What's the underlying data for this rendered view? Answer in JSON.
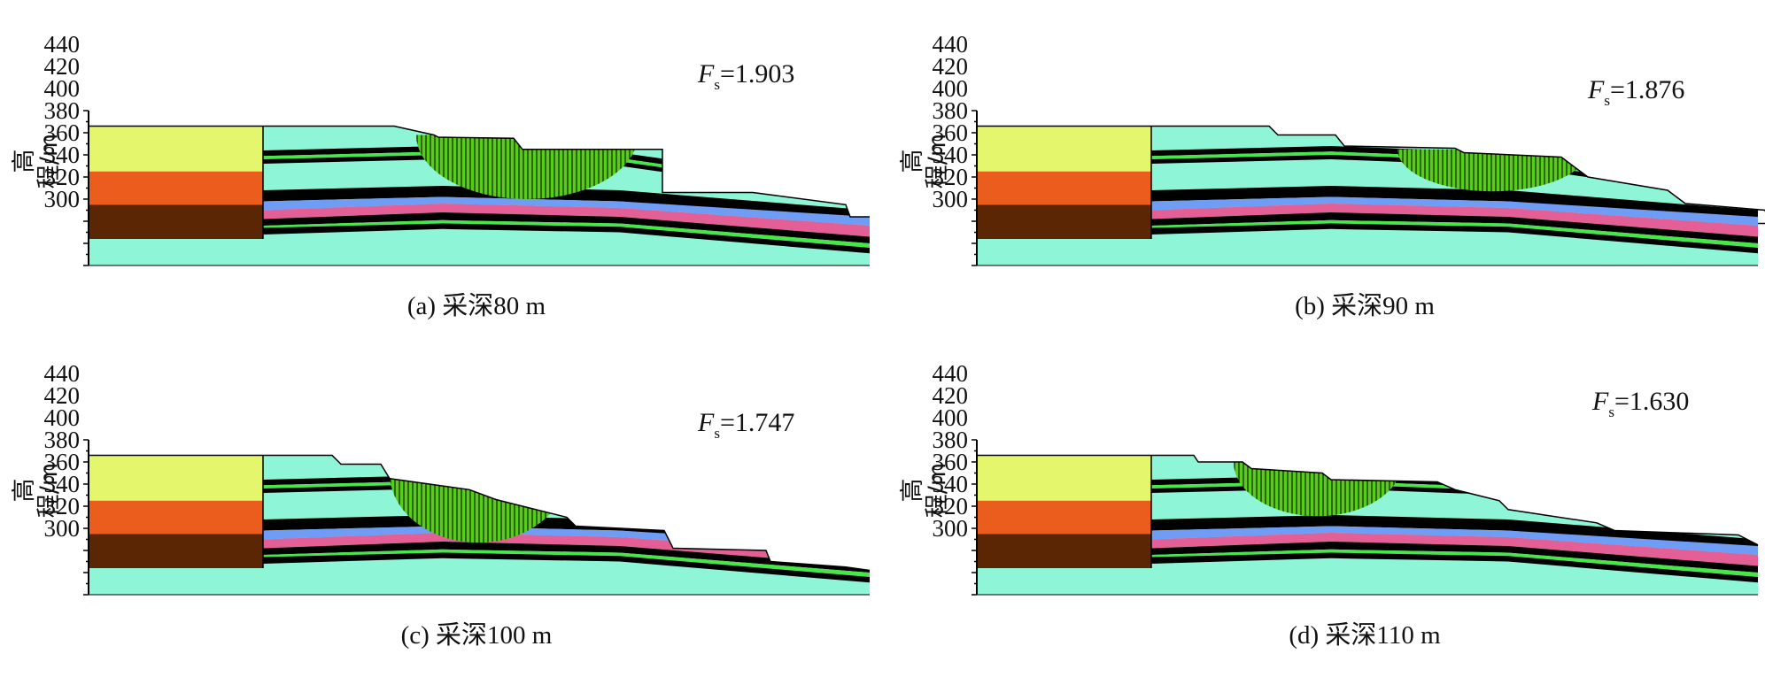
{
  "figure": {
    "y_axis_label": "高程/m",
    "y_ticks": [
      "440",
      "420",
      "400",
      "380",
      "360",
      "340",
      "320",
      "300"
    ],
    "colors": {
      "cyan_layer": "#8ef5d7",
      "black_layer": "#000000",
      "green_layer": "#49e649",
      "blue_layer": "#6f9cf4",
      "pink_layer": "#e35f95",
      "yellow_block": "#e4f76c",
      "orange_block": "#ea5d1d",
      "brown_block": "#5a2604",
      "slip_zone": "#57cc1b"
    },
    "panels": [
      {
        "id": "a",
        "caption": "(a) 采深80 m",
        "fs_symbol": "F",
        "fs_subscript": "s",
        "fs_value": "=1.903"
      },
      {
        "id": "b",
        "caption": "(b) 采深90 m",
        "fs_symbol": "F",
        "fs_subscript": "s",
        "fs_value": "=1.876"
      },
      {
        "id": "c",
        "caption": "(c) 采深100 m",
        "fs_symbol": "F",
        "fs_subscript": "s",
        "fs_value": "=1.747"
      },
      {
        "id": "d",
        "caption": "(d) 采深110 m",
        "fs_symbol": "F",
        "fs_subscript": "s",
        "fs_value": "=1.630"
      }
    ]
  }
}
